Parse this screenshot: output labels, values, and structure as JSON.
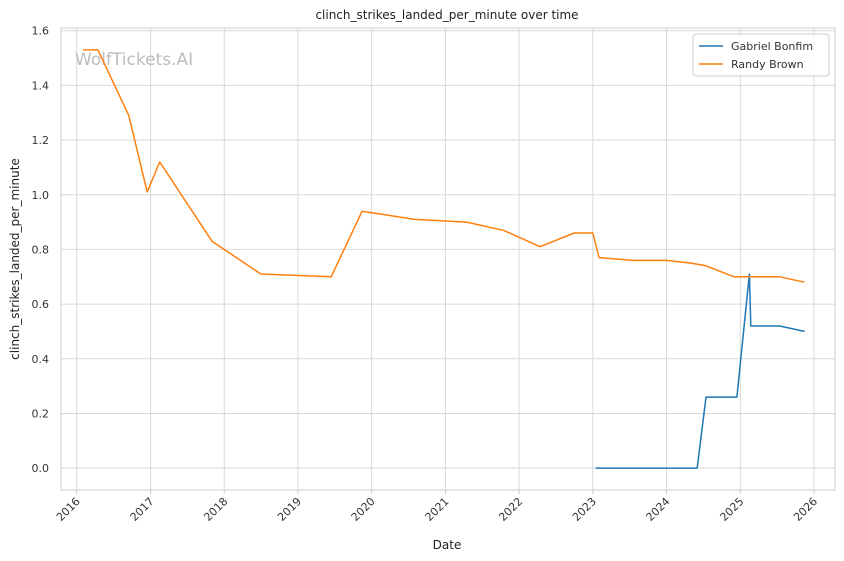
{
  "chart_data": {
    "type": "line",
    "title": "clinch_strikes_landed_per_minute over time",
    "xlabel": "Date",
    "ylabel": "clinch_strikes_landed_per_minute",
    "watermark": "WolfTickets.AI",
    "xlim": [
      "2015-10-15",
      "2026-04-15"
    ],
    "ylim": [
      -0.08,
      1.61
    ],
    "x_ticks": [
      "2016",
      "2017",
      "2018",
      "2019",
      "2020",
      "2021",
      "2022",
      "2023",
      "2024",
      "2025",
      "2026"
    ],
    "y_ticks": [
      "0.0",
      "0.2",
      "0.4",
      "0.6",
      "0.8",
      "1.0",
      "1.2",
      "1.4",
      "1.6"
    ],
    "grid": true,
    "legend_position": "top-right",
    "series": [
      {
        "name": "Gabriel Bonfim",
        "color": "#1f77b4",
        "points": [
          {
            "x": "2023-01-15",
            "y": 0.0
          },
          {
            "x": "2023-06-01",
            "y": 0.0
          },
          {
            "x": "2024-06-01",
            "y": 0.0
          },
          {
            "x": "2024-07-15",
            "y": 0.26
          },
          {
            "x": "2024-12-15",
            "y": 0.26
          },
          {
            "x": "2025-02-15",
            "y": 0.71
          },
          {
            "x": "2025-02-22",
            "y": 0.52
          },
          {
            "x": "2025-07-15",
            "y": 0.52
          },
          {
            "x": "2025-11-15",
            "y": 0.5
          }
        ]
      },
      {
        "name": "Randy Brown",
        "color": "#ff7f0e",
        "points": [
          {
            "x": "2016-02-01",
            "y": 1.53
          },
          {
            "x": "2016-04-15",
            "y": 1.53
          },
          {
            "x": "2016-09-15",
            "y": 1.29
          },
          {
            "x": "2016-12-15",
            "y": 1.01
          },
          {
            "x": "2017-02-15",
            "y": 1.12
          },
          {
            "x": "2017-11-01",
            "y": 0.83
          },
          {
            "x": "2018-07-01",
            "y": 0.71
          },
          {
            "x": "2019-06-15",
            "y": 0.7
          },
          {
            "x": "2019-11-15",
            "y": 0.94
          },
          {
            "x": "2020-08-01",
            "y": 0.91
          },
          {
            "x": "2021-04-15",
            "y": 0.9
          },
          {
            "x": "2021-10-15",
            "y": 0.87
          },
          {
            "x": "2022-04-15",
            "y": 0.81
          },
          {
            "x": "2022-10-01",
            "y": 0.86
          },
          {
            "x": "2023-01-01",
            "y": 0.86
          },
          {
            "x": "2023-02-01",
            "y": 0.77
          },
          {
            "x": "2023-07-15",
            "y": 0.76
          },
          {
            "x": "2024-01-01",
            "y": 0.76
          },
          {
            "x": "2024-05-01",
            "y": 0.75
          },
          {
            "x": "2024-07-15",
            "y": 0.74
          },
          {
            "x": "2024-12-01",
            "y": 0.7
          },
          {
            "x": "2025-03-01",
            "y": 0.7
          },
          {
            "x": "2025-07-15",
            "y": 0.7
          },
          {
            "x": "2025-11-15",
            "y": 0.68
          }
        ]
      }
    ]
  }
}
